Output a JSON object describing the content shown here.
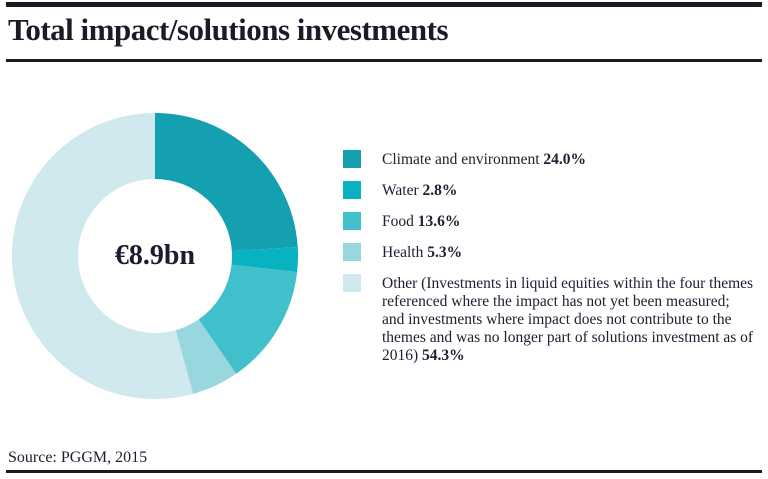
{
  "title": "Total impact/solutions investments",
  "source": "Source: PGGM, 2015",
  "chart_data": {
    "type": "pie",
    "donut": true,
    "title": "Total impact/solutions investments",
    "center_label": "€8.9bn",
    "legend_position": "right",
    "start_angle_deg": 0,
    "direction": "clockwise",
    "outer_radius": 143,
    "inner_radius": 77,
    "segments": [
      {
        "label": "Climate and environment",
        "pct_label": "24.0%",
        "value": 24.0,
        "color": "#14a0b0"
      },
      {
        "label": "Water",
        "pct_label": "2.8%",
        "value": 2.8,
        "color": "#09b2c0"
      },
      {
        "label": "Food",
        "pct_label": "13.6%",
        "value": 13.6,
        "color": "#41bfca"
      },
      {
        "label": "Health",
        "pct_label": "5.3%",
        "value": 5.3,
        "color": "#98d7dd"
      },
      {
        "label": "Other (Investments in liquid equities within the four themes referenced where the impact has not yet been measured; and investments where impact does not contribute to the themes and was no longer part of solutions investment as of 2016)",
        "pct_label": "54.3%",
        "value": 54.3,
        "color": "#cfe9ee"
      }
    ]
  }
}
